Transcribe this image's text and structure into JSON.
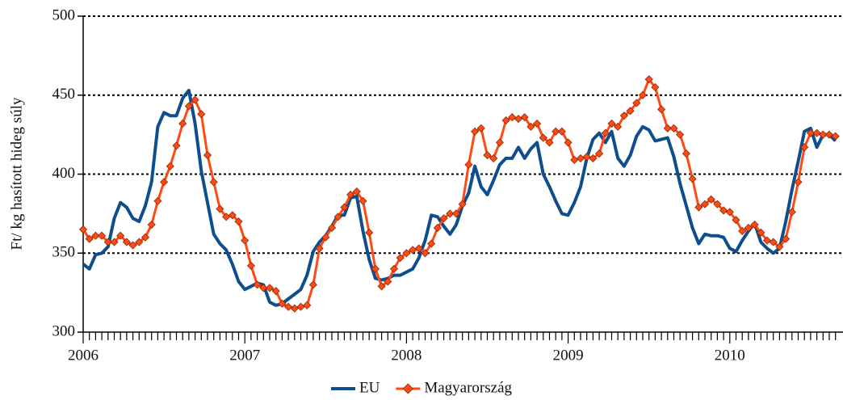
{
  "chart_data": {
    "type": "line",
    "y_label": "Ft/ kg hasított hideg súly",
    "categories": [
      "2006",
      null,
      null,
      null,
      null,
      null,
      null,
      null,
      null,
      null,
      null,
      null,
      null,
      null,
      null,
      null,
      null,
      null,
      null,
      null,
      null,
      null,
      null,
      null,
      null,
      null,
      "2007",
      null,
      null,
      null,
      null,
      null,
      null,
      null,
      null,
      null,
      null,
      null,
      null,
      null,
      null,
      null,
      null,
      null,
      null,
      null,
      null,
      null,
      null,
      null,
      null,
      null,
      "2008",
      null,
      null,
      null,
      null,
      null,
      null,
      null,
      null,
      null,
      null,
      null,
      null,
      null,
      null,
      null,
      null,
      null,
      null,
      null,
      null,
      null,
      null,
      null,
      null,
      null,
      "2009",
      null,
      null,
      null,
      null,
      null,
      null,
      null,
      null,
      null,
      null,
      null,
      null,
      null,
      null,
      null,
      null,
      null,
      null,
      null,
      null,
      null,
      null,
      null,
      null,
      null,
      "2010",
      null,
      null,
      null,
      null,
      null,
      null,
      null,
      null,
      null,
      null,
      null,
      null,
      null,
      null,
      null,
      null,
      null
    ],
    "series": [
      {
        "name": "EU",
        "color": "#0f4e8c",
        "marker": false,
        "values": [
          343,
          340,
          349,
          350,
          354,
          372,
          382,
          379,
          372,
          370,
          380,
          395,
          430,
          439,
          437,
          437,
          448,
          453,
          432,
          402,
          382,
          362,
          356,
          352,
          343,
          332,
          327,
          329,
          331,
          330,
          319,
          317,
          318,
          321,
          324,
          327,
          336,
          351,
          357,
          361,
          367,
          374,
          374,
          385,
          386,
          364,
          346,
          334,
          333,
          334,
          336,
          336,
          338,
          340,
          347,
          358,
          374,
          373,
          367,
          362,
          368,
          380,
          388,
          405,
          392,
          387,
          396,
          406,
          410,
          410,
          417,
          410,
          416,
          420,
          400,
          392,
          383,
          375,
          374,
          382,
          392,
          410,
          422,
          426,
          420,
          427,
          410,
          405,
          412,
          424,
          430,
          428,
          421,
          422,
          423,
          411,
          394,
          380,
          366,
          356,
          362,
          361,
          361,
          360,
          353,
          351,
          358,
          364,
          369,
          357,
          353,
          350,
          353,
          370,
          390,
          408,
          427,
          429,
          417,
          425,
          425,
          421
        ]
      },
      {
        "name": "Magyarország",
        "color": "#ff4a14",
        "marker": true,
        "values": [
          365,
          359,
          361,
          361,
          357,
          357,
          361,
          357,
          355,
          357,
          360,
          368,
          383,
          395,
          405,
          418,
          432,
          443,
          447,
          438,
          412,
          395,
          378,
          373,
          374,
          370,
          358,
          342,
          330,
          328,
          328,
          326,
          318,
          316,
          315,
          316,
          317,
          330,
          353,
          360,
          366,
          373,
          379,
          387,
          389,
          383,
          363,
          340,
          329,
          332,
          340,
          347,
          350,
          352,
          353,
          350,
          356,
          366,
          372,
          375,
          375,
          381,
          406,
          427,
          429,
          412,
          410,
          420,
          434,
          436,
          435,
          436,
          430,
          432,
          423,
          420,
          427,
          427,
          420,
          409,
          410,
          411,
          410,
          413,
          426,
          432,
          430,
          437,
          440,
          445,
          450,
          460,
          455,
          441,
          429,
          429,
          425,
          413,
          397,
          379,
          381,
          384,
          381,
          377,
          376,
          371,
          364,
          366,
          368,
          363,
          358,
          357,
          354,
          359,
          376,
          395,
          417,
          426,
          426,
          425,
          425,
          424
        ]
      }
    ],
    "ylim": [
      300,
      500
    ],
    "yticks": [
      300,
      350,
      400,
      450,
      500
    ],
    "grid": true,
    "legend": "bottom"
  }
}
